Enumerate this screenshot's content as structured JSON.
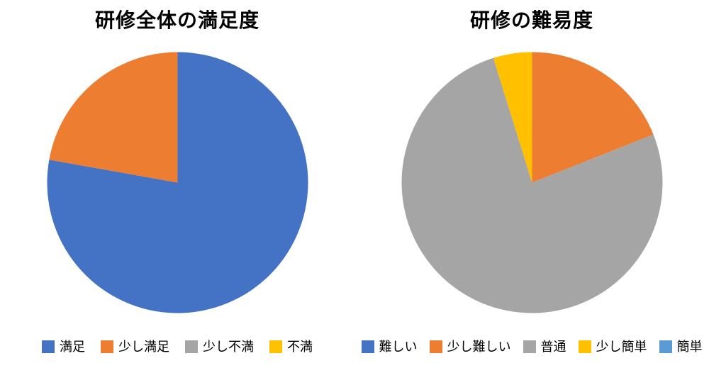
{
  "chart_data": [
    {
      "type": "pie",
      "title": "研修全体の満足度",
      "labels": [
        "満足",
        "少し満足",
        "少し不満",
        "不満"
      ],
      "values": [
        77.8,
        22.2,
        0,
        0
      ],
      "colors": [
        "#4472C4",
        "#ED7D31",
        "#A5A5A5",
        "#FFC000"
      ],
      "start_angle_deg": 0,
      "direction": "clockwise",
      "legend_position": "bottom",
      "notes": "slice angles: 満足 280°, 少し満足 80°; zero-value categories appear only in legend"
    },
    {
      "type": "pie",
      "title": "研修の難易度",
      "labels": [
        "難しい",
        "少し難しい",
        "普通",
        "少し簡単",
        "簡単"
      ],
      "values": [
        0,
        19,
        76.2,
        4.8,
        0
      ],
      "colors": [
        "#4472C4",
        "#ED7D31",
        "#A5A5A5",
        "#FFC000",
        "#5B9BD5"
      ],
      "start_angle_deg": 0,
      "direction": "clockwise",
      "legend_position": "bottom",
      "notes": "slice angles: 少し難しい 68.5°, 普通 274.4°, 少し簡単 17.1°; zero-value categories appear only in legend"
    }
  ],
  "background_color": "#ffffff"
}
